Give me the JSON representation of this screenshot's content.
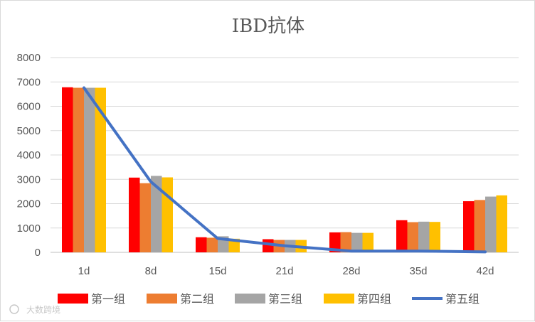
{
  "chart_data": {
    "type": "bar",
    "title": "IBD抗体",
    "xlabel": "",
    "ylabel": "",
    "ylim": [
      0,
      8000
    ],
    "yticks": [
      0,
      1000,
      2000,
      3000,
      4000,
      5000,
      6000,
      7000,
      8000
    ],
    "grid": true,
    "legend_position": "bottom",
    "categories": [
      "1d",
      "8d",
      "15d",
      "21d",
      "28d",
      "35d",
      "42d"
    ],
    "series": [
      {
        "name": "第一组",
        "kind": "bar",
        "color": "#ff0000",
        "values": [
          6780,
          3070,
          620,
          540,
          820,
          1320,
          2100
        ]
      },
      {
        "name": "第二组",
        "kind": "bar",
        "color": "#ed7d31",
        "values": [
          6760,
          2840,
          600,
          510,
          830,
          1240,
          2150
        ]
      },
      {
        "name": "第三组",
        "kind": "bar",
        "color": "#a5a5a5",
        "values": [
          6760,
          3140,
          660,
          510,
          800,
          1260,
          2290
        ]
      },
      {
        "name": "第四组",
        "kind": "bar",
        "color": "#ffc000",
        "values": [
          6760,
          3080,
          560,
          510,
          800,
          1250,
          2340
        ]
      },
      {
        "name": "第五组",
        "kind": "line",
        "color": "#4472c4",
        "values": [
          6760,
          2900,
          570,
          270,
          50,
          50,
          20
        ]
      }
    ]
  },
  "watermark": "大数跨境"
}
